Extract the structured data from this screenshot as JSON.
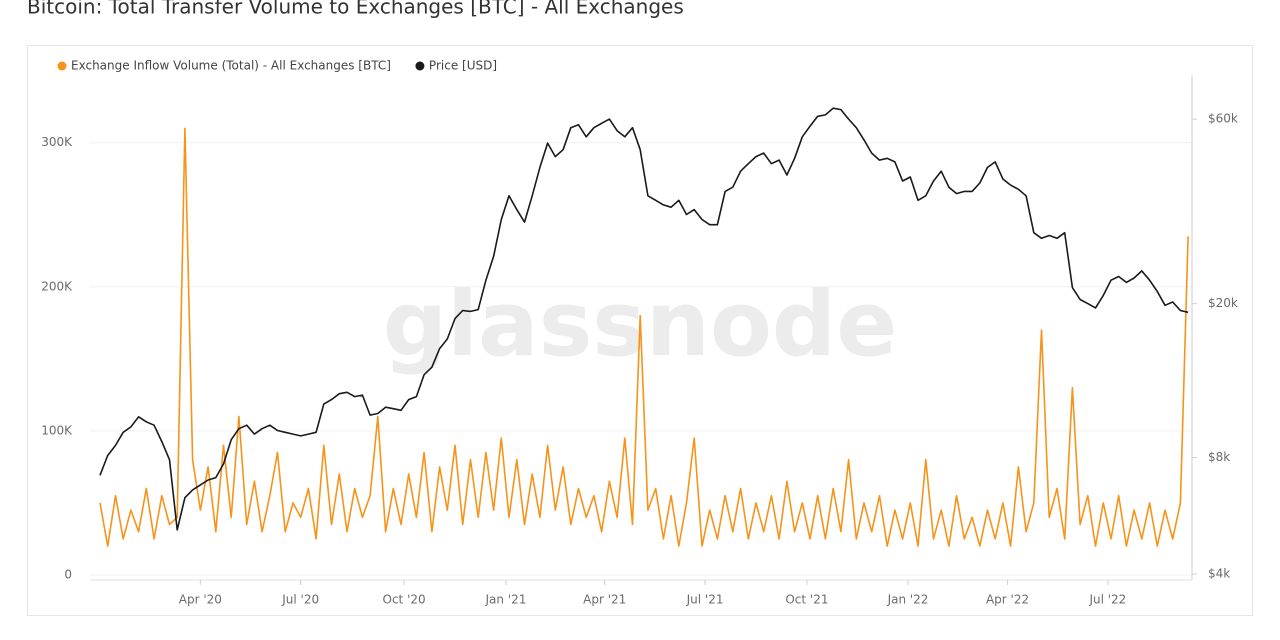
{
  "chart_data": {
    "type": "line",
    "title": "Bitcoin: Total Transfer Volume to Exchanges [BTC] - All Exchanges",
    "watermark": "glassnode",
    "xlim": [
      -1.3,
      141.5
    ],
    "xticks": [
      {
        "value": 13,
        "label": "Apr '20"
      },
      {
        "value": 26,
        "label": "Jul '20"
      },
      {
        "value": 39.4,
        "label": "Oct '20"
      },
      {
        "value": 52.6,
        "label": "Jan '21"
      },
      {
        "value": 65.4,
        "label": "Apr '21"
      },
      {
        "value": 78.4,
        "label": "Jul '21"
      },
      {
        "value": 91.6,
        "label": "Oct '21"
      },
      {
        "value": 104.7,
        "label": "Jan '22"
      },
      {
        "value": 117.6,
        "label": "Apr '22"
      },
      {
        "value": 130.6,
        "label": "Jul '22"
      }
    ],
    "ylim": [
      -3500,
      347000
    ],
    "yticks": [
      0,
      {
        "value": 100000,
        "label": "100K"
      },
      {
        "value": 200000,
        "label": "200K"
      },
      {
        "value": 300000,
        "label": "300K"
      }
    ],
    "y2lim": [
      3860,
      78000
    ],
    "y2_scale": "log",
    "y2ticks": [
      {
        "value": 4000,
        "label": "$4k"
      },
      {
        "value": 8000,
        "label": "$8k"
      },
      {
        "value": 20000,
        "label": "$20k"
      },
      {
        "value": 60000,
        "label": "$60k"
      }
    ],
    "grid": true,
    "legend": "top-left",
    "series": [
      {
        "name": "Exchange Inflow Volume (Total) - All Exchanges [BTC]",
        "color": "#f7931a",
        "values": [
          50000,
          20000,
          55000,
          25000,
          45000,
          30000,
          60000,
          25000,
          55000,
          35000,
          40000,
          310000,
          80000,
          45000,
          75000,
          30000,
          90000,
          40000,
          110000,
          35000,
          65000,
          30000,
          55000,
          85000,
          30000,
          50000,
          40000,
          60000,
          25000,
          90000,
          35000,
          70000,
          30000,
          60000,
          40000,
          55000,
          110000,
          30000,
          60000,
          35000,
          70000,
          40000,
          85000,
          30000,
          75000,
          45000,
          90000,
          35000,
          80000,
          40000,
          85000,
          45000,
          95000,
          40000,
          80000,
          35000,
          70000,
          40000,
          90000,
          45000,
          75000,
          35000,
          60000,
          40000,
          55000,
          30000,
          65000,
          40000,
          95000,
          35000,
          180000,
          45000,
          60000,
          25000,
          55000,
          20000,
          50000,
          95000,
          20000,
          45000,
          25000,
          55000,
          30000,
          60000,
          25000,
          50000,
          30000,
          55000,
          25000,
          65000,
          30000,
          50000,
          25000,
          55000,
          25000,
          60000,
          30000,
          80000,
          25000,
          50000,
          30000,
          55000,
          20000,
          45000,
          25000,
          50000,
          20000,
          80000,
          25000,
          45000,
          20000,
          55000,
          25000,
          40000,
          20000,
          45000,
          25000,
          50000,
          20000,
          75000,
          30000,
          50000,
          170000,
          40000,
          60000,
          25000,
          130000,
          35000,
          55000,
          20000,
          50000,
          25000,
          55000,
          20000,
          45000,
          25000,
          50000,
          20000,
          45000,
          25000,
          50000,
          235000
        ]
      },
      {
        "name": "Price [USD]",
        "color": "#1a1a1a",
        "axis": "y2",
        "values": [
          7200,
          8100,
          8600,
          9300,
          9600,
          10200,
          9900,
          9700,
          8800,
          7900,
          5200,
          6300,
          6600,
          6800,
          7000,
          7100,
          7700,
          8900,
          9500,
          9700,
          9200,
          9500,
          9700,
          9400,
          9300,
          9200,
          9100,
          9200,
          9300,
          11000,
          11300,
          11700,
          11800,
          11500,
          11600,
          10300,
          10400,
          10800,
          10700,
          10600,
          11300,
          11500,
          13100,
          13700,
          15300,
          16200,
          18300,
          19200,
          19100,
          19300,
          23000,
          26500,
          33000,
          38000,
          35000,
          32500,
          38000,
          45000,
          52000,
          48000,
          50000,
          57000,
          58000,
          54000,
          57000,
          58500,
          60000,
          56000,
          54000,
          57000,
          50000,
          38000,
          37000,
          36000,
          35500,
          37000,
          34000,
          35000,
          33000,
          32000,
          32000,
          39000,
          40000,
          44000,
          46000,
          48000,
          49000,
          46000,
          47000,
          43000,
          47500,
          54000,
          57500,
          61000,
          61500,
          64000,
          63500,
          60000,
          57000,
          53000,
          49000,
          47000,
          47500,
          46500,
          41500,
          42500,
          37000,
          38000,
          41500,
          44000,
          40000,
          38500,
          39000,
          39000,
          41000,
          45000,
          46500,
          42000,
          40500,
          39500,
          38000,
          30500,
          29500,
          30000,
          29500,
          30500,
          22000,
          20500,
          20000,
          19500,
          21000,
          23000,
          23500,
          22700,
          23300,
          24300,
          23000,
          21500,
          19800,
          20200,
          19200,
          19000
        ]
      }
    ]
  }
}
